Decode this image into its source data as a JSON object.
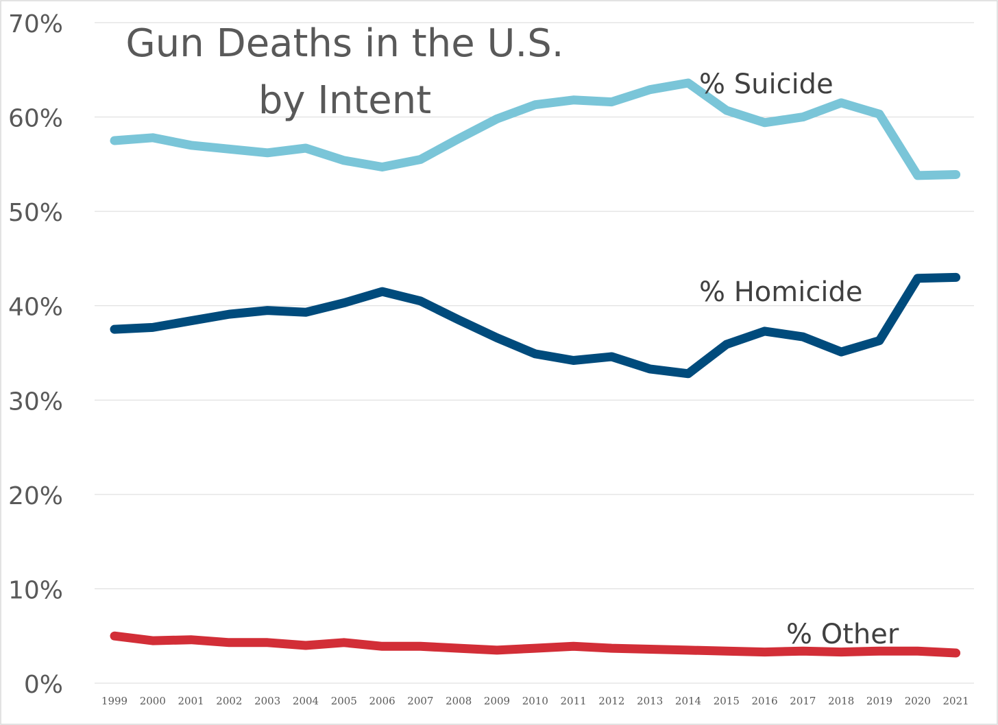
{
  "chart_data": {
    "type": "line",
    "title": "Gun Deaths in the U.S.",
    "subtitle": "by Intent",
    "xlabel": "",
    "ylabel": "",
    "ylim": [
      0,
      70
    ],
    "yticks": [
      "0%",
      "10%",
      "20%",
      "30%",
      "40%",
      "50%",
      "60%",
      "70%"
    ],
    "ytick_values": [
      0,
      10,
      20,
      30,
      40,
      50,
      60,
      70
    ],
    "grid": true,
    "categories": [
      "1999",
      "2000",
      "2001",
      "2002",
      "2003",
      "2004",
      "2005",
      "2006",
      "2007",
      "2008",
      "2009",
      "2010",
      "2011",
      "2012",
      "2013",
      "2014",
      "2015",
      "2016",
      "2017",
      "2018",
      "2019",
      "2020",
      "2021"
    ],
    "series": [
      {
        "name": "% Suicide",
        "color": "#7ac5d8",
        "values": [
          57.5,
          57.8,
          57.0,
          56.6,
          56.2,
          56.7,
          55.4,
          54.7,
          55.5,
          57.7,
          59.8,
          61.3,
          61.8,
          61.6,
          62.9,
          63.6,
          60.7,
          59.4,
          60.0,
          61.5,
          60.3,
          53.8,
          53.9
        ]
      },
      {
        "name": "% Homicide",
        "color": "#004b7c",
        "values": [
          37.5,
          37.7,
          38.4,
          39.1,
          39.5,
          39.3,
          40.3,
          41.5,
          40.5,
          38.5,
          36.6,
          34.9,
          34.2,
          34.6,
          33.3,
          32.8,
          35.9,
          37.3,
          36.7,
          35.1,
          36.3,
          42.9,
          43.0
        ]
      },
      {
        "name": "% Other",
        "color": "#d22e37",
        "values": [
          5.0,
          4.5,
          4.6,
          4.3,
          4.3,
          4.0,
          4.3,
          3.9,
          3.9,
          3.7,
          3.5,
          3.7,
          3.9,
          3.7,
          3.6,
          3.5,
          3.4,
          3.3,
          3.4,
          3.3,
          3.4,
          3.4,
          3.2
        ]
      }
    ]
  }
}
